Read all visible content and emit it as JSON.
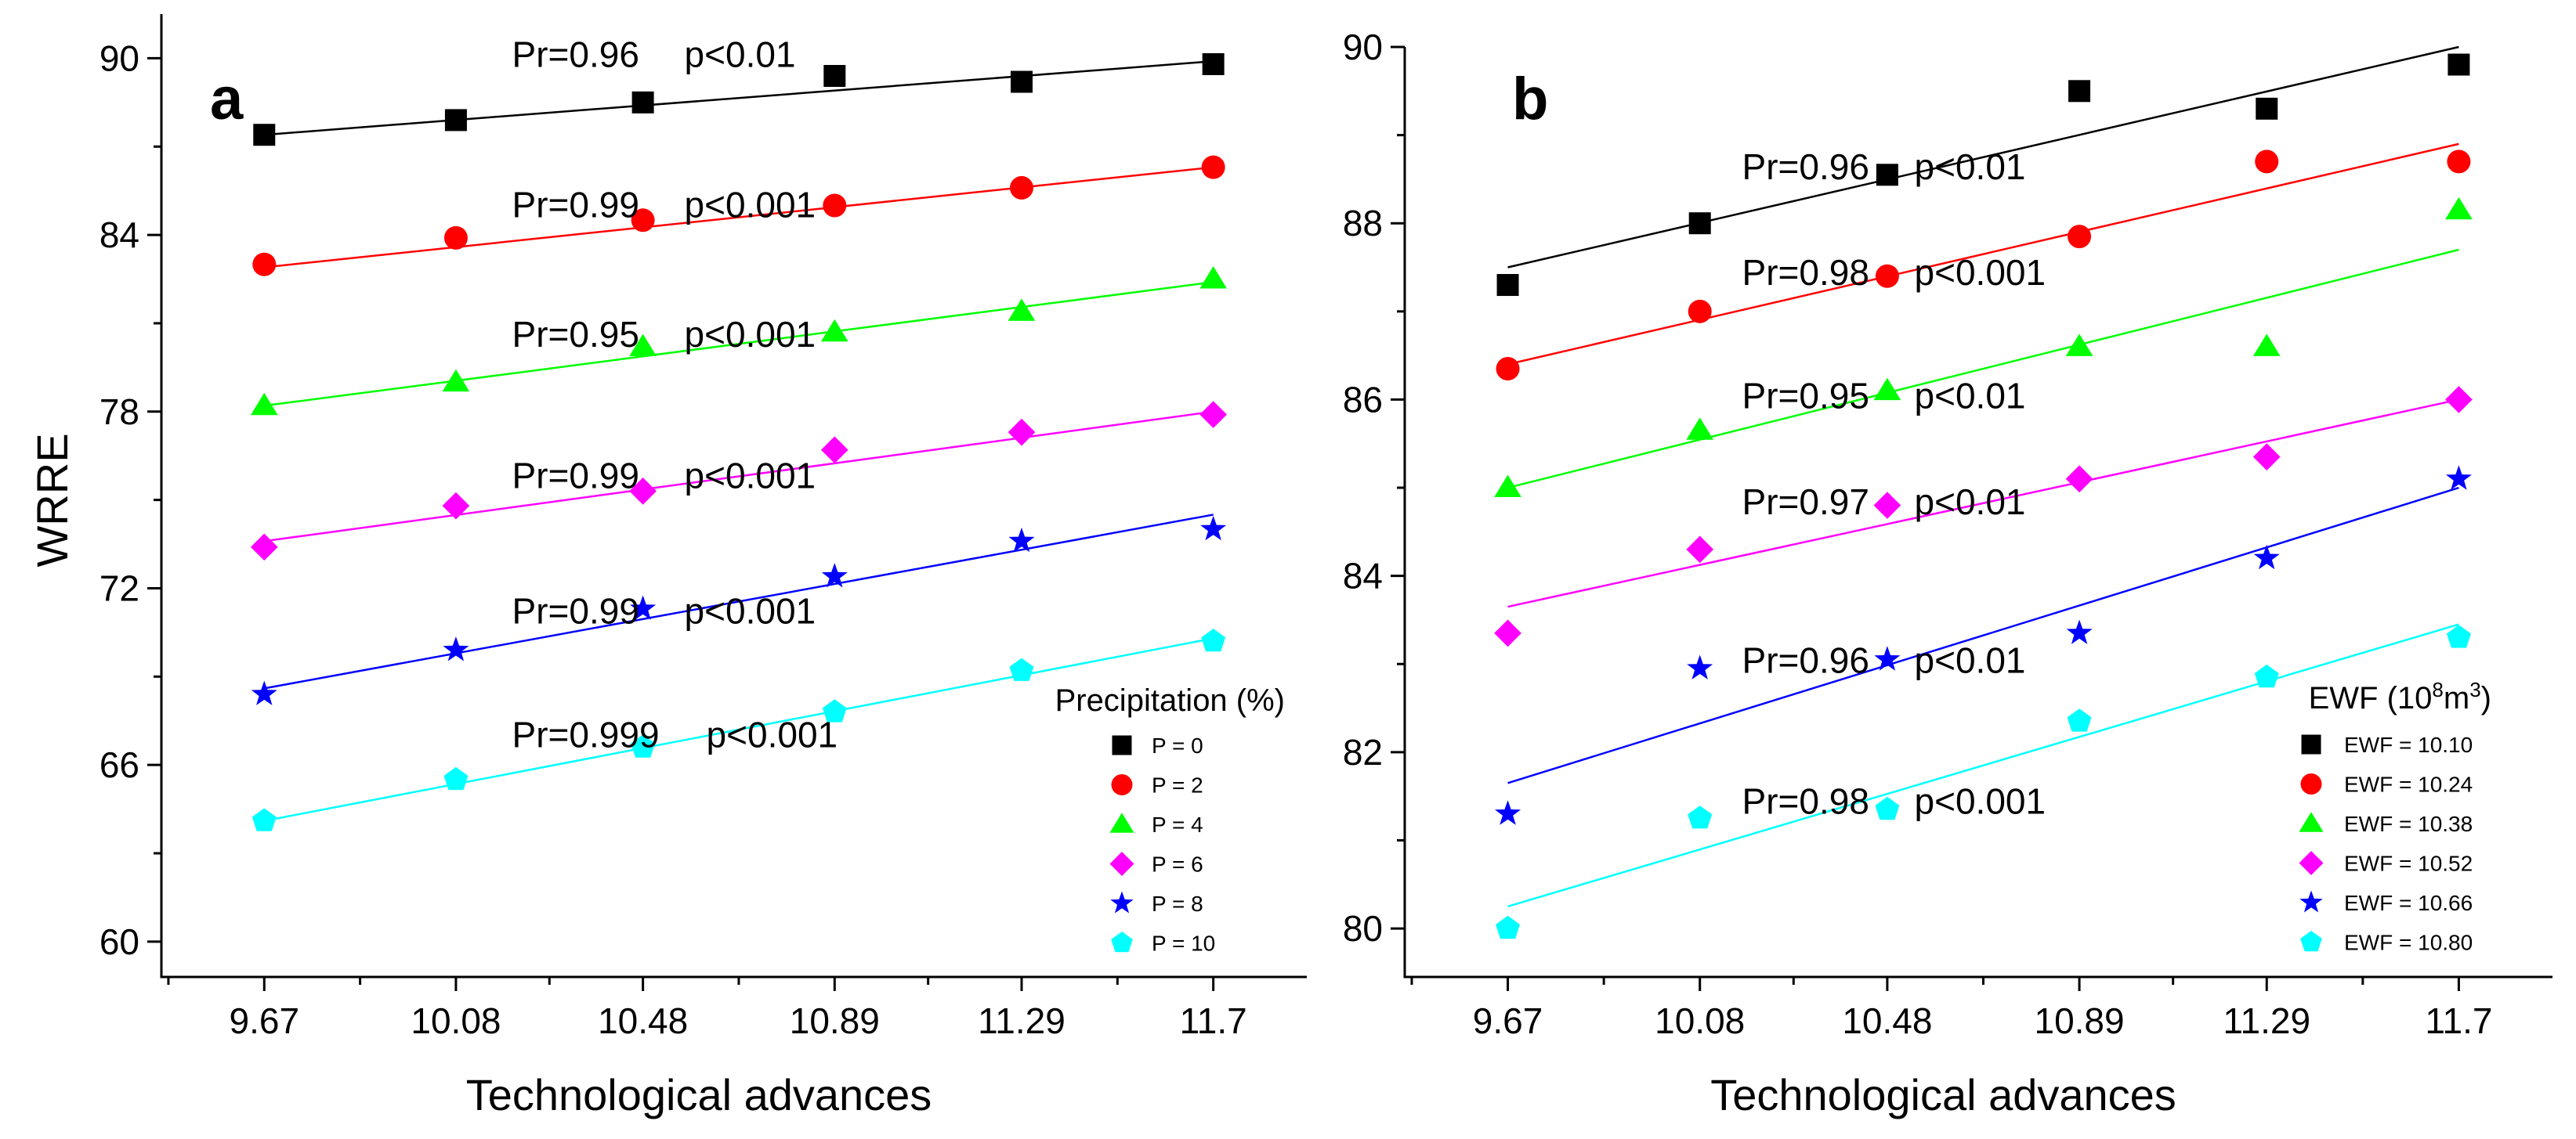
{
  "chart_data": [
    {
      "type": "scatter",
      "panel_label": "a",
      "xlabel": "Technological advances",
      "ylabel": "WRRE",
      "x": [
        9.67,
        10.08,
        10.48,
        10.89,
        11.29,
        11.7
      ],
      "x_tick_labels": [
        "9.67",
        "10.08",
        "10.48",
        "10.89",
        "11.29",
        "11.7"
      ],
      "xlim": [
        9.45,
        11.9
      ],
      "ylim": [
        58.8,
        91.5
      ],
      "y_ticks": [
        60,
        66,
        72,
        78,
        84,
        90
      ],
      "y_tick_labels": [
        "60",
        "66",
        "72",
        "78",
        "84",
        "90"
      ],
      "legend_title": "Precipitation (%)",
      "legend_position": "bottom-right",
      "series": [
        {
          "name": "P = 0",
          "marker": "square",
          "color": "#000000",
          "values": [
            87.4,
            87.9,
            88.5,
            89.4,
            89.2,
            89.8
          ],
          "fit": [
            87.4,
            89.9
          ],
          "annotation": {
            "pr": "Pr=0.96",
            "p": "p<0.01",
            "x": 10.2,
            "y": 89.7
          }
        },
        {
          "name": "P = 2",
          "marker": "circle",
          "color": "#ff0000",
          "values": [
            83.0,
            83.9,
            84.5,
            85.0,
            85.6,
            86.3
          ],
          "fit": [
            82.9,
            86.3
          ],
          "annotation": {
            "pr": "Pr=0.99",
            "p": "p<0.001",
            "x": 10.2,
            "y": 84.6
          }
        },
        {
          "name": "P = 4",
          "marker": "triangle",
          "color": "#00ff00",
          "values": [
            78.2,
            79.0,
            80.2,
            80.7,
            81.4,
            82.5
          ],
          "fit": [
            78.2,
            82.4
          ],
          "annotation": {
            "pr": "Pr=0.95",
            "p": "p<0.001",
            "x": 10.2,
            "y": 80.2
          }
        },
        {
          "name": "P = 6",
          "marker": "diamond",
          "color": "#ff00ff",
          "values": [
            73.4,
            74.8,
            75.3,
            76.7,
            77.3,
            77.9
          ],
          "fit": [
            73.6,
            78.0
          ],
          "annotation": {
            "pr": "Pr=0.99",
            "p": "p<0.001",
            "x": 10.2,
            "y": 75.4
          }
        },
        {
          "name": "P = 8",
          "marker": "star",
          "color": "#0000ff",
          "values": [
            68.4,
            69.9,
            71.3,
            72.4,
            73.6,
            74.0
          ],
          "fit": [
            68.6,
            74.5
          ],
          "annotation": {
            "pr": "Pr=0.99",
            "p": "p<0.001",
            "x": 10.2,
            "y": 70.8
          }
        },
        {
          "name": "P = 10",
          "marker": "pentagon",
          "color": "#00ffff",
          "values": [
            64.1,
            65.5,
            66.6,
            67.8,
            69.2,
            70.2
          ],
          "fit": [
            64.1,
            70.3
          ],
          "annotation": {
            "pr": "Pr=0.999",
            "p": "p<0.001",
            "x": 10.2,
            "y": 66.6
          }
        }
      ]
    },
    {
      "type": "scatter",
      "panel_label": "b",
      "xlabel": "Technological advances",
      "ylabel": "",
      "x": [
        9.67,
        10.08,
        10.48,
        10.89,
        11.29,
        11.7
      ],
      "x_tick_labels": [
        "9.67",
        "10.08",
        "10.48",
        "10.89",
        "11.29",
        "11.7"
      ],
      "xlim": [
        9.45,
        11.9
      ],
      "ylim": [
        79.45,
        90.0
      ],
      "y_ticks": [
        80,
        82,
        84,
        86,
        88,
        90
      ],
      "y_tick_labels": [
        "80",
        "82",
        "84",
        "86",
        "88",
        "90"
      ],
      "legend_title": "EWF (10⁸m³)",
      "legend_position": "bottom-right",
      "series": [
        {
          "name": "EWF = 10.10",
          "marker": "square",
          "color": "#000000",
          "values": [
            87.3,
            88.0,
            88.55,
            89.5,
            89.3,
            89.8
          ],
          "fit": [
            87.5,
            90.0
          ],
          "annotation": {
            "pr": "Pr=0.96",
            "p": "p<0.01",
            "x": 10.17,
            "y": 88.5
          }
        },
        {
          "name": "EWF = 10.24",
          "marker": "circle",
          "color": "#ff0000",
          "values": [
            86.35,
            87.0,
            87.4,
            87.85,
            88.7,
            88.7
          ],
          "fit": [
            86.4,
            88.9
          ],
          "annotation": {
            "pr": "Pr=0.98",
            "p": "p<0.001",
            "x": 10.17,
            "y": 87.3
          }
        },
        {
          "name": "EWF = 10.38",
          "marker": "triangle",
          "color": "#00ff00",
          "values": [
            85.0,
            85.65,
            86.1,
            86.6,
            86.6,
            88.15
          ],
          "fit": [
            85.0,
            87.7
          ],
          "annotation": {
            "pr": "Pr=0.95",
            "p": "p<0.01",
            "x": 10.17,
            "y": 85.9
          }
        },
        {
          "name": "EWF = 10.52",
          "marker": "diamond",
          "color": "#ff00ff",
          "values": [
            83.35,
            84.3,
            84.8,
            85.1,
            85.35,
            86.0
          ],
          "fit": [
            83.65,
            86.0
          ],
          "annotation": {
            "pr": "Pr=0.97",
            "p": "p<0.01",
            "x": 10.17,
            "y": 84.7
          }
        },
        {
          "name": "EWF = 10.66",
          "marker": "star",
          "color": "#0000ff",
          "values": [
            81.3,
            82.95,
            83.05,
            83.35,
            84.2,
            85.1
          ],
          "fit": [
            81.65,
            85.0
          ],
          "annotation": {
            "pr": "Pr=0.96",
            "p": "p<0.01",
            "x": 10.17,
            "y": 82.9
          }
        },
        {
          "name": "EWF = 10.80",
          "marker": "pentagon",
          "color": "#00ffff",
          "values": [
            80.0,
            81.25,
            81.35,
            82.35,
            82.85,
            83.3
          ],
          "fit": [
            80.25,
            83.45
          ],
          "annotation": {
            "pr": "Pr=0.98",
            "p": "p<0.001",
            "x": 10.17,
            "y": 81.3
          }
        }
      ]
    }
  ]
}
